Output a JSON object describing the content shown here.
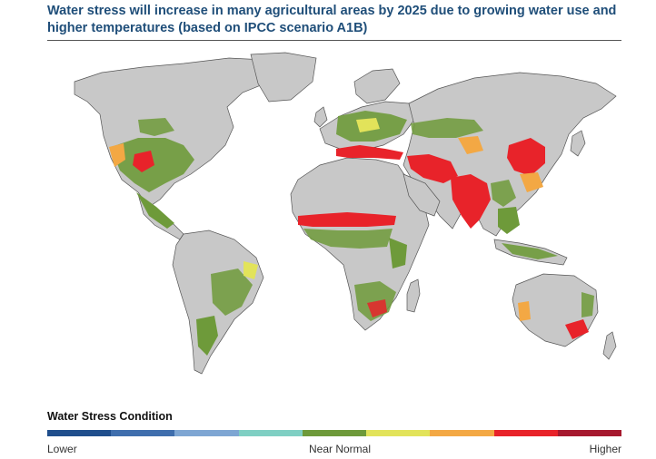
{
  "title": "Water stress will increase in many agricultural areas by 2025 due to growing water use and higher temperatures (based on IPCC scenario A1B)",
  "legend": {
    "title": "Water Stress Condition",
    "low_label": "Lower",
    "mid_label": "Near Normal",
    "high_label": "Higher",
    "colors": [
      "#1f4e8c",
      "#3f6ead",
      "#7ea6d3",
      "#7fcfc3",
      "#6e9a3a",
      "#e2e35a",
      "#f3a844",
      "#e8232a",
      "#a6192e"
    ]
  },
  "map": {
    "land_color": "#c8c8c8",
    "border_color": "#555555"
  }
}
